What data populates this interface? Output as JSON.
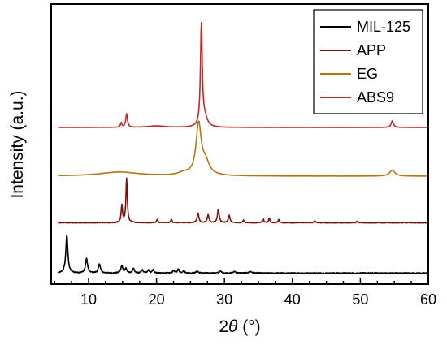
{
  "chart_data": {
    "type": "line",
    "xlabel": "2θ (°)",
    "ylabel": "Intensity (a.u.)",
    "xlim": [
      4.5,
      60
    ],
    "xticks": [
      10,
      20,
      30,
      40,
      50,
      60
    ],
    "yticks_shown": false,
    "grid": false,
    "legend_position": "top-right",
    "series": [
      {
        "name": "MIL-125",
        "color": "#000000",
        "baseline": 0.02,
        "noise": 0.015,
        "peaks": [
          {
            "x": 6.8,
            "h": 0.58,
            "w": 0.18
          },
          {
            "x": 9.7,
            "h": 0.22,
            "w": 0.18
          },
          {
            "x": 11.6,
            "h": 0.14,
            "w": 0.18
          },
          {
            "x": 14.9,
            "h": 0.11,
            "w": 0.18
          },
          {
            "x": 15.5,
            "h": 0.07,
            "w": 0.15
          },
          {
            "x": 16.6,
            "h": 0.07,
            "w": 0.15
          },
          {
            "x": 17.9,
            "h": 0.05,
            "w": 0.15
          },
          {
            "x": 18.8,
            "h": 0.05,
            "w": 0.15
          },
          {
            "x": 19.5,
            "h": 0.05,
            "w": 0.15
          },
          {
            "x": 22.5,
            "h": 0.04,
            "w": 0.15
          },
          {
            "x": 23.2,
            "h": 0.06,
            "w": 0.15
          },
          {
            "x": 24.0,
            "h": 0.04,
            "w": 0.15
          },
          {
            "x": 26.0,
            "h": 0.03,
            "w": 0.2
          },
          {
            "x": 29.4,
            "h": 0.03,
            "w": 0.2
          },
          {
            "x": 31.5,
            "h": 0.025,
            "w": 0.2
          },
          {
            "x": 33.8,
            "h": 0.025,
            "w": 0.25
          }
        ]
      },
      {
        "name": "APP",
        "color": "#7a1010",
        "baseline": 0.02,
        "noise": 0.01,
        "peaks": [
          {
            "x": 14.9,
            "h": 0.27,
            "w": 0.12
          },
          {
            "x": 15.6,
            "h": 0.68,
            "w": 0.12
          },
          {
            "x": 20.1,
            "h": 0.05,
            "w": 0.12
          },
          {
            "x": 22.2,
            "h": 0.05,
            "w": 0.12
          },
          {
            "x": 26.1,
            "h": 0.15,
            "w": 0.15
          },
          {
            "x": 27.6,
            "h": 0.12,
            "w": 0.15
          },
          {
            "x": 29.1,
            "h": 0.21,
            "w": 0.15
          },
          {
            "x": 30.7,
            "h": 0.11,
            "w": 0.15
          },
          {
            "x": 32.8,
            "h": 0.04,
            "w": 0.12
          },
          {
            "x": 35.7,
            "h": 0.06,
            "w": 0.12
          },
          {
            "x": 36.6,
            "h": 0.07,
            "w": 0.12
          },
          {
            "x": 38.0,
            "h": 0.05,
            "w": 0.12
          },
          {
            "x": 43.3,
            "h": 0.03,
            "w": 0.12
          },
          {
            "x": 49.5,
            "h": 0.02,
            "w": 0.12
          }
        ]
      },
      {
        "name": "EG",
        "color": "#b8750f",
        "baseline": 0.0,
        "noise": 0.003,
        "peaks": [
          {
            "x": 14.5,
            "h": 0.08,
            "w": 3.5
          },
          {
            "x": 24.0,
            "h": 0.05,
            "w": 1.0
          },
          {
            "x": 26.2,
            "h": 1.0,
            "w": 0.45
          },
          {
            "x": 27.2,
            "h": 0.25,
            "w": 0.7
          },
          {
            "x": 54.7,
            "h": 0.12,
            "w": 0.45
          }
        ]
      },
      {
        "name": "ABS9",
        "color": "#c62828",
        "baseline": 0.0,
        "noise": 0.003,
        "peaks": [
          {
            "x": 15.6,
            "h": 0.18,
            "w": 0.15
          },
          {
            "x": 14.8,
            "h": 0.06,
            "w": 0.12
          },
          {
            "x": 20.0,
            "h": 0.02,
            "w": 1.5
          },
          {
            "x": 26.6,
            "h": 1.35,
            "w": 0.16
          },
          {
            "x": 27.1,
            "h": 0.12,
            "w": 0.45
          },
          {
            "x": 54.7,
            "h": 0.09,
            "w": 0.2
          }
        ]
      }
    ]
  }
}
